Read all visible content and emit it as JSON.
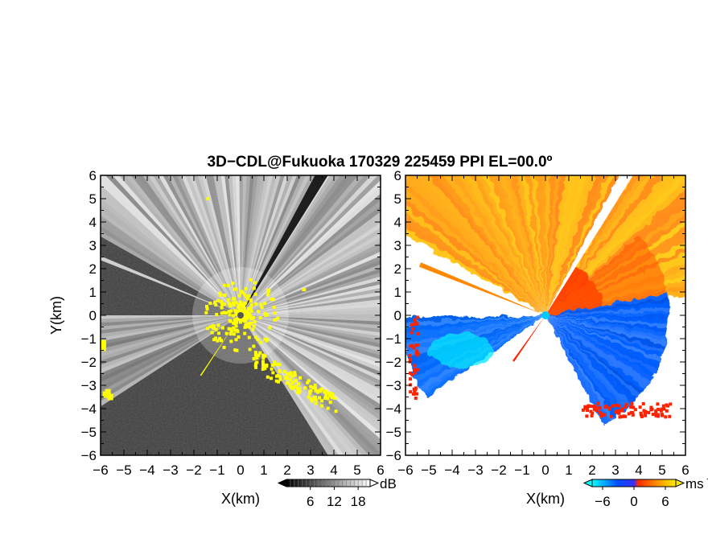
{
  "figure": {
    "title": "3D−CDL@Fukuoka 170329 225459 PPI EL=00.0º"
  },
  "chart_data": [
    {
      "type": "heatmap",
      "panel": "left",
      "product": "signal intensity (PPI)",
      "xlabel": "X(km)",
      "ylabel": "Y(km)",
      "xlim": [
        -6,
        6
      ],
      "ylim": [
        -6,
        6
      ],
      "xticks": [
        "−6",
        "−5",
        "−4",
        "−3",
        "−2",
        "−1",
        "0",
        "1",
        "2",
        "3",
        "4",
        "5",
        "6"
      ],
      "yticks": [
        "6",
        "5",
        "4",
        "3",
        "2",
        "1",
        "0",
        "−1",
        "−2",
        "−3",
        "−4",
        "−5",
        "−6"
      ],
      "colorbar": {
        "unit": "dB",
        "ticks": [
          "6",
          "12",
          "18"
        ],
        "tick_values": [
          6,
          12,
          18
        ],
        "range": [
          0,
          21
        ],
        "colors": [
          "#000000",
          "#ffffff"
        ]
      },
      "highlight_color": "#ffff00",
      "radar_center": [
        0,
        0
      ]
    },
    {
      "type": "heatmap",
      "panel": "right",
      "product": "Doppler velocity (PPI)",
      "xlabel": "X(km)",
      "xlim": [
        -6,
        6
      ],
      "ylim": [
        -6,
        6
      ],
      "xticks": [
        "−6",
        "−5",
        "−4",
        "−3",
        "−2",
        "−1",
        "0",
        "1",
        "2",
        "3",
        "4",
        "5",
        "6"
      ],
      "yticks": [
        "6",
        "5",
        "4",
        "3",
        "2",
        "1",
        "0",
        "−1",
        "−2",
        "−3",
        "−4",
        "−5",
        "−6"
      ],
      "colorbar": {
        "unit": "ms",
        "unit_exponent": "−1",
        "ticks": [
          "−6",
          "0",
          "6"
        ],
        "tick_values": [
          -6,
          0,
          6
        ],
        "range": [
          -8,
          8
        ],
        "colors": [
          "#00ffff",
          "#0050ff",
          "#ff2a00",
          "#ffee00"
        ]
      },
      "radar_center": [
        0,
        0
      ]
    }
  ]
}
